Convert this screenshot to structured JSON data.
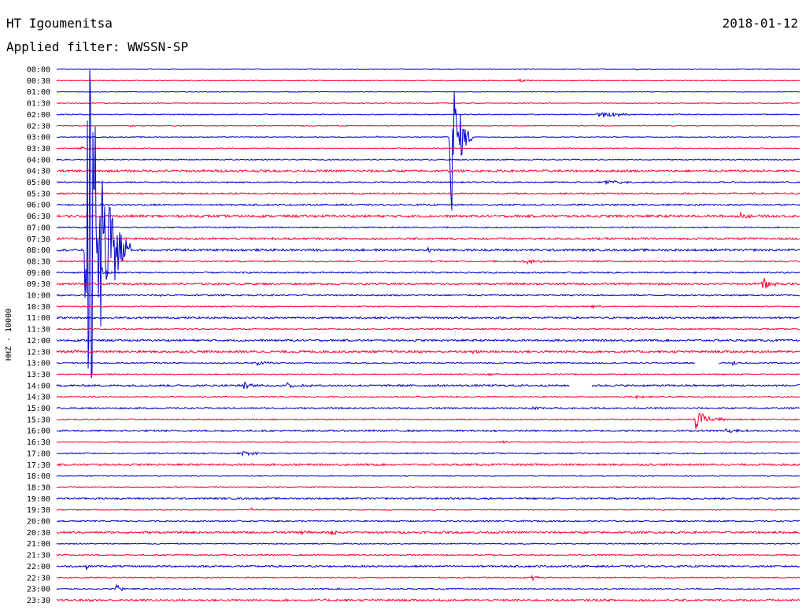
{
  "header": {
    "station": "HT Igoumenitsa",
    "date": "2018-01-12",
    "filter": "Applied filter: WWSSN-SP"
  },
  "chart_data": {
    "type": "line",
    "ylabel": "HHZ - 10000",
    "trace_colors": [
      "#0000cc",
      "#ff0033"
    ],
    "row_labels": [
      "00:00",
      "00:30",
      "01:00",
      "01:30",
      "02:00",
      "02:30",
      "03:00",
      "03:30",
      "04:00",
      "04:30",
      "05:00",
      "05:30",
      "06:00",
      "06:30",
      "07:00",
      "07:30",
      "08:00",
      "08:30",
      "09:00",
      "09:30",
      "10:00",
      "10:30",
      "11:00",
      "11:30",
      "12:00",
      "12:30",
      "13:00",
      "13:30",
      "14:00",
      "14:30",
      "15:00",
      "15:30",
      "16:00",
      "16:30",
      "17:00",
      "17:30",
      "18:00",
      "18:30",
      "19:00",
      "19:30",
      "20:00",
      "20:30",
      "21:00",
      "21:30",
      "22:00",
      "22:30",
      "23:00",
      "23:30"
    ],
    "noise_levels": [
      0.4,
      0.5,
      0.4,
      0.5,
      0.6,
      0.5,
      0.5,
      0.6,
      0.7,
      1.4,
      0.8,
      1.0,
      1.0,
      1.5,
      0.8,
      1.3,
      1.4,
      0.9,
      0.9,
      1.2,
      0.9,
      0.7,
      1.2,
      0.8,
      1.2,
      1.4,
      0.8,
      0.7,
      1.2,
      0.8,
      0.9,
      0.8,
      1.1,
      0.7,
      0.8,
      1.2,
      0.6,
      0.7,
      1.1,
      0.6,
      0.9,
      1.3,
      0.7,
      0.8,
      1.1,
      0.7,
      0.8,
      1.3
    ],
    "gaps": [
      {
        "row": 28,
        "start": 0.69,
        "end": 0.72
      },
      {
        "row": 26,
        "start": 0.86,
        "end": 0.89
      }
    ],
    "events": [
      {
        "row": 0,
        "pos": 0.78,
        "amp": 1,
        "dur": 0.03
      },
      {
        "row": 1,
        "pos": 0.62,
        "amp": 2,
        "dur": 0.04
      },
      {
        "row": 3,
        "pos": 0.04,
        "amp": 1,
        "dur": 0.06
      },
      {
        "row": 4,
        "pos": 0.73,
        "amp": 5,
        "dur": 0.07
      },
      {
        "row": 5,
        "pos": 0.1,
        "amp": 1,
        "dur": 0.05
      },
      {
        "row": 6,
        "pos": 0.43,
        "amp": 1,
        "dur": 0.04
      },
      {
        "row": 6,
        "pos": 0.53,
        "amp": 120,
        "dur": 0.03
      },
      {
        "row": 7,
        "pos": 0.03,
        "amp": 2,
        "dur": 0.07
      },
      {
        "row": 10,
        "pos": 0.74,
        "amp": 3,
        "dur": 0.08
      },
      {
        "row": 11,
        "pos": 0.32,
        "amp": 2,
        "dur": 0.03
      },
      {
        "row": 13,
        "pos": 0.92,
        "amp": 4,
        "dur": 0.03
      },
      {
        "row": 15,
        "pos": 0.29,
        "amp": 2,
        "dur": 0.02
      },
      {
        "row": 16,
        "pos": 0.5,
        "amp": 4,
        "dur": 0.02
      },
      {
        "row": 16,
        "pos": 0.04,
        "amp": 300,
        "dur": 0.06
      },
      {
        "row": 17,
        "pos": 0.63,
        "amp": 3,
        "dur": 0.05
      },
      {
        "row": 18,
        "pos": 0.06,
        "amp": 10,
        "dur": 0.03
      },
      {
        "row": 19,
        "pos": 0.95,
        "amp": 9,
        "dur": 0.03
      },
      {
        "row": 20,
        "pos": 0.14,
        "amp": 2,
        "dur": 0.03
      },
      {
        "row": 21,
        "pos": 0.72,
        "amp": 2,
        "dur": 0.04
      },
      {
        "row": 25,
        "pos": 0.56,
        "amp": 3,
        "dur": 0.02
      },
      {
        "row": 26,
        "pos": 0.27,
        "amp": 4,
        "dur": 0.04
      },
      {
        "row": 26,
        "pos": 0.91,
        "amp": 3,
        "dur": 0.03
      },
      {
        "row": 27,
        "pos": 0.58,
        "amp": 2,
        "dur": 0.06
      },
      {
        "row": 28,
        "pos": 0.25,
        "amp": 5,
        "dur": 0.03
      },
      {
        "row": 28,
        "pos": 0.31,
        "amp": 4,
        "dur": 0.04
      },
      {
        "row": 29,
        "pos": 0.78,
        "amp": 2,
        "dur": 0.03
      },
      {
        "row": 30,
        "pos": 0.64,
        "amp": 2,
        "dur": 0.06
      },
      {
        "row": 31,
        "pos": 0.86,
        "amp": 14,
        "dur": 0.05
      },
      {
        "row": 32,
        "pos": 0.9,
        "amp": 3,
        "dur": 0.04
      },
      {
        "row": 33,
        "pos": 0.6,
        "amp": 2,
        "dur": 0.04
      },
      {
        "row": 34,
        "pos": 0.25,
        "amp": 3,
        "dur": 0.05
      },
      {
        "row": 39,
        "pos": 0.26,
        "amp": 2,
        "dur": 0.03
      },
      {
        "row": 41,
        "pos": 0.33,
        "amp": 3,
        "dur": 0.03
      },
      {
        "row": 41,
        "pos": 0.37,
        "amp": 5,
        "dur": 0.02
      },
      {
        "row": 44,
        "pos": 0.04,
        "amp": 4,
        "dur": 0.01
      },
      {
        "row": 45,
        "pos": 0.64,
        "amp": 4,
        "dur": 0.02
      },
      {
        "row": 46,
        "pos": 0.08,
        "amp": 6,
        "dur": 0.02
      }
    ]
  }
}
